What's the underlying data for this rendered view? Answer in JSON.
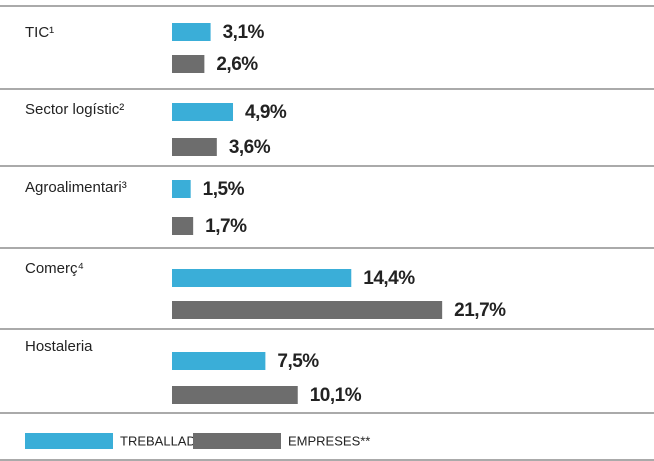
{
  "chart_data": {
    "type": "hbar",
    "categories": [
      "TIC¹",
      "Sector logístic²",
      "Agroalimentari³",
      "Comerç⁴",
      "Hostaleria"
    ],
    "series": [
      {
        "name": "TREBALLADORS*",
        "color": "#3aaed8",
        "values": [
          3.1,
          4.9,
          1.5,
          14.4,
          7.5
        ],
        "value_labels": [
          "3,1%",
          "4,9%",
          "1,5%",
          "14,4%",
          "7,5%"
        ]
      },
      {
        "name": "EMPRESES**",
        "color": "#6d6d6d",
        "values": [
          2.6,
          3.6,
          1.7,
          21.7,
          10.1
        ],
        "value_labels": [
          "2,6%",
          "3,6%",
          "1,7%",
          "21,7%",
          "10,1%"
        ]
      }
    ]
  }
}
